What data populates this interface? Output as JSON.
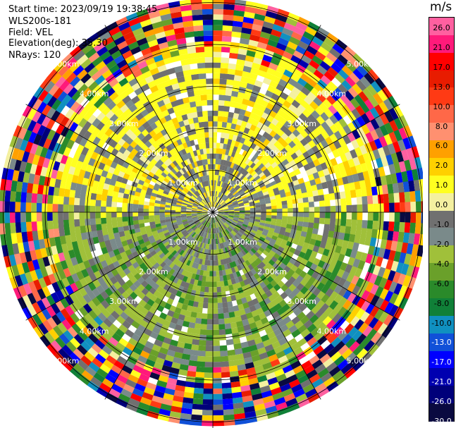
{
  "header": {
    "start_time": "Start time: 2023/09/19 19:38:45",
    "instrument": "WLS200s-181",
    "field": "Field: VEL",
    "elevation": "Elevation(deg): 35.30",
    "nrays": "NRays: 120"
  },
  "chart_data": {
    "type": "heatmap",
    "projection": "polar PPI",
    "field": "VEL",
    "units": "m/s",
    "nrays": 120,
    "range_rings_km": [
      1.0,
      2.0,
      3.0,
      4.0,
      5.0
    ],
    "ring_labels": [
      "1.00km",
      "2.00km",
      "3.00km",
      "4.00km",
      "5.00km"
    ],
    "colorbar": {
      "vmin": -30.0,
      "vmax": 30.0,
      "tick_values": [
        26.0,
        21.0,
        17.0,
        13.0,
        10.0,
        8.0,
        6.0,
        2.0,
        1.0,
        0.0,
        -1.0,
        -2.0,
        -4.0,
        -6.0,
        -8.0,
        -10.0,
        -13.0,
        -17.0,
        -21.0,
        -26.0,
        -30.0
      ],
      "tick_labels": [
        "26.0",
        "21.0",
        "17.0",
        "13.0",
        "10.0",
        "8.0",
        "6.0",
        "2.0",
        "1.0",
        "0.0",
        "-1.0",
        "-2.0",
        "-4.0",
        "-6.0",
        "-8.0",
        "-10.0",
        "-13.0",
        "-17.0",
        "-21.0",
        "-26.0",
        "-30.0"
      ],
      "colors": [
        "#ff60a0",
        "#ff1a7a",
        "#ff0000",
        "#e81c00",
        "#ff3a14",
        "#ff6848",
        "#ff9070",
        "#ffa000",
        "#ffd000",
        "#ffff20",
        "#f4f0a0",
        "#707070",
        "#7a8a8a",
        "#a0c03a",
        "#6aa02a",
        "#2a8a2a",
        "#108038",
        "#1090c0",
        "#1050d8",
        "#0000ff",
        "#0000b0",
        "#00007a",
        "#0a0a40"
      ]
    }
  }
}
